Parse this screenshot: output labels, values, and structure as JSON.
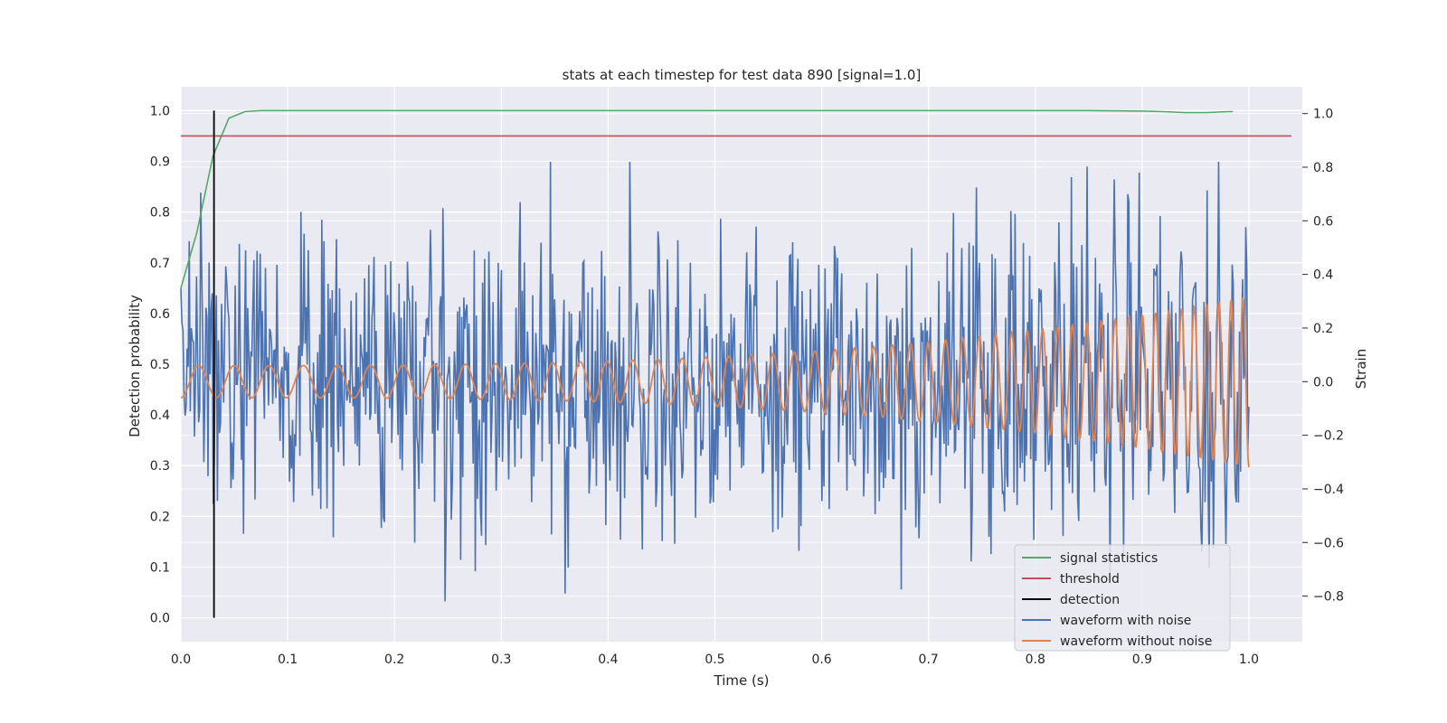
{
  "chart_data": {
    "type": "line",
    "title": "stats at each timestep for test data 890 [signal=1.0]",
    "xlabel": "Time (s)",
    "ylabel": "Detection probability",
    "y2label": "Strain",
    "xlim": [
      0.0,
      1.05
    ],
    "ylim": [
      -0.047,
      1.047
    ],
    "y2lim": [
      -0.97,
      1.1
    ],
    "xticks": [
      "0.0",
      "0.1",
      "0.2",
      "0.3",
      "0.4",
      "0.5",
      "0.6",
      "0.7",
      "0.8",
      "0.9",
      "1.0"
    ],
    "yticks": [
      "0.0",
      "0.1",
      "0.2",
      "0.3",
      "0.4",
      "0.5",
      "0.6",
      "0.7",
      "0.8",
      "0.9",
      "1.0"
    ],
    "y2ticks": [
      "−0.8",
      "−0.6",
      "−0.4",
      "−0.2",
      "0.0",
      "0.2",
      "0.4",
      "0.6",
      "0.8",
      "1.0"
    ],
    "grid": true,
    "legend_position": "lower-right",
    "colors": {
      "background": "#eaeaf2",
      "grid": "#ffffff",
      "signal_statistics": "#55a868",
      "threshold": "#c44e52",
      "detection": "#000000",
      "waveform_noise": "#4c72b0",
      "waveform_clean": "#dd8452"
    },
    "series": [
      {
        "name": "signal statistics",
        "axis": "left",
        "x": [
          0.0,
          0.015,
          0.03,
          0.045,
          0.06,
          0.075,
          0.1,
          0.2,
          0.3,
          0.4,
          0.5,
          0.6,
          0.7,
          0.8,
          0.85,
          0.9,
          0.92,
          0.94,
          0.96,
          0.98,
          0.985
        ],
        "y": [
          0.65,
          0.76,
          0.91,
          0.985,
          0.998,
          1.0,
          1.0,
          1.0,
          1.0,
          1.0,
          1.0,
          1.0,
          1.0,
          1.0,
          1.0,
          0.999,
          0.998,
          0.996,
          0.996,
          0.998,
          0.998
        ]
      },
      {
        "name": "threshold",
        "axis": "left",
        "value": 0.95
      },
      {
        "name": "detection",
        "axis": "left",
        "x": 0.031,
        "y_range": [
          0.0,
          1.0
        ]
      },
      {
        "name": "waveform with noise",
        "axis": "right",
        "x_range": [
          0.0,
          1.0
        ],
        "n_points": 1024,
        "noise_std": 0.28,
        "observed_max": 0.82,
        "observed_min": -0.82
      },
      {
        "name": "waveform without noise",
        "axis": "right",
        "model": "chirp",
        "f_start_hz": 30,
        "f_end_hz": 72,
        "amp_start": 0.06,
        "amp_end": 0.32
      }
    ],
    "legend": [
      "signal statistics",
      "threshold",
      "detection",
      "waveform with noise",
      "waveform without noise"
    ]
  }
}
